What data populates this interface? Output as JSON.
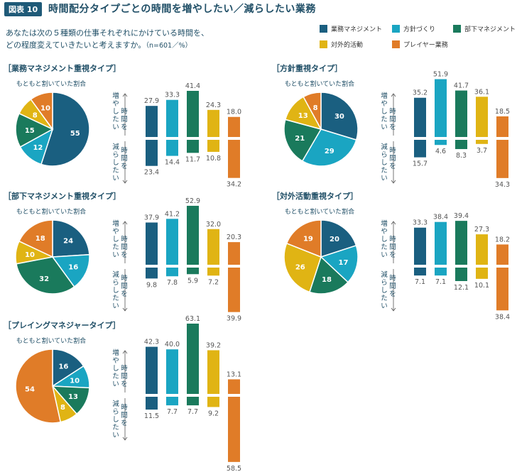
{
  "figure_tag": "図表 10",
  "figure_title": "時間配分タイプごとの時間を増やしたい／減らしたい業務",
  "question_line1": "あなたは次の５種類の仕事それぞれにかけている時間を、",
  "question_line2": "どの程度変えていきたいと考えますか。",
  "sample_note": "（n=601／%）",
  "colors": {
    "業務マネジメント": "#1a5f80",
    "方針づくり": "#1aa5c2",
    "部下マネジメント": "#1a7a5c",
    "対外的活動": "#e0b414",
    "プレイヤー業務": "#e07c28"
  },
  "legend": [
    "業務マネジメント",
    "方針づくり",
    "部下マネジメント",
    "対外的活動",
    "プレイヤー業務"
  ],
  "pie_caption": "もともと割いていた割合",
  "axis_increase": "増やしたい",
  "axis_decrease": "減らしたい",
  "axis_time": "時間を",
  "chart_data": [
    {
      "type": "pie+bar",
      "title": "［業務マネジメント重視タイプ］",
      "pie": {
        "categories": [
          "業務マネジメント",
          "方針づくり",
          "部下マネジメント",
          "対外的活動",
          "プレイヤー業務"
        ],
        "values": [
          55,
          12,
          15,
          8,
          10
        ]
      },
      "bars": {
        "categories": [
          "業務マネジメント",
          "方針づくり",
          "部下マネジメント",
          "対外的活動",
          "プレイヤー業務"
        ],
        "increase": [
          27.9,
          33.3,
          41.4,
          24.3,
          18.0
        ],
        "decrease": [
          23.4,
          14.4,
          11.7,
          10.8,
          34.2
        ]
      }
    },
    {
      "type": "pie+bar",
      "title": "［方針重視タイプ］",
      "pie": {
        "categories": [
          "業務マネジメント",
          "方針づくり",
          "部下マネジメント",
          "対外的活動",
          "プレイヤー業務"
        ],
        "values": [
          30,
          29,
          21,
          13,
          8
        ]
      },
      "bars": {
        "categories": [
          "業務マネジメント",
          "方針づくり",
          "部下マネジメント",
          "対外的活動",
          "プレイヤー業務"
        ],
        "increase": [
          35.2,
          51.9,
          41.7,
          36.1,
          18.5
        ],
        "decrease": [
          15.7,
          4.6,
          8.3,
          3.7,
          34.3
        ]
      }
    },
    {
      "type": "pie+bar",
      "title": "［部下マネジメント重視タイプ］",
      "pie": {
        "categories": [
          "業務マネジメント",
          "方針づくり",
          "部下マネジメント",
          "対外的活動",
          "プレイヤー業務"
        ],
        "values": [
          24,
          16,
          32,
          10,
          18
        ]
      },
      "bars": {
        "categories": [
          "業務マネジメント",
          "方針づくり",
          "部下マネジメント",
          "対外的活動",
          "プレイヤー業務"
        ],
        "increase": [
          37.9,
          41.2,
          52.9,
          32.0,
          20.3
        ],
        "decrease": [
          9.8,
          7.8,
          5.9,
          7.2,
          39.9
        ]
      }
    },
    {
      "type": "pie+bar",
      "title": "［対外活動重視タイプ］",
      "pie": {
        "categories": [
          "業務マネジメント",
          "方針づくり",
          "部下マネジメント",
          "対外的活動",
          "プレイヤー業務"
        ],
        "values": [
          20,
          17,
          18,
          26,
          19
        ]
      },
      "bars": {
        "categories": [
          "業務マネジメント",
          "方針づくり",
          "部下マネジメント",
          "対外的活動",
          "プレイヤー業務"
        ],
        "increase": [
          33.3,
          38.4,
          39.4,
          27.3,
          18.2
        ],
        "decrease": [
          7.1,
          7.1,
          12.1,
          10.1,
          38.4
        ]
      }
    },
    {
      "type": "pie+bar",
      "title": "［プレイングマネジャータイプ］",
      "pie": {
        "categories": [
          "業務マネジメント",
          "方針づくり",
          "部下マネジメント",
          "対外的活動",
          "プレイヤー業務"
        ],
        "values": [
          16,
          10,
          13,
          8,
          54
        ]
      },
      "bars": {
        "categories": [
          "業務マネジメント",
          "方針づくり",
          "部下マネジメント",
          "対外的活動",
          "プレイヤー業務"
        ],
        "increase": [
          42.3,
          40.0,
          63.1,
          39.2,
          13.1
        ],
        "decrease": [
          11.5,
          7.7,
          7.7,
          9.2,
          58.5
        ]
      }
    }
  ]
}
